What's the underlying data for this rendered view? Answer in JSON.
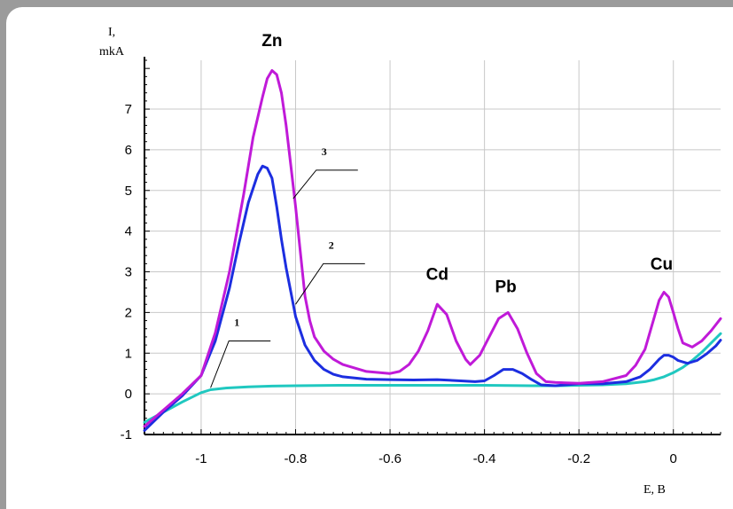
{
  "chart_data": {
    "type": "line",
    "title": "",
    "ylabel_line1": "I,",
    "ylabel_line2": "mkA",
    "xlabel": "E, B",
    "xlim": [
      -1.12,
      0.1
    ],
    "ylim": [
      -1,
      8.2
    ],
    "xticks": [
      -1,
      -0.8,
      -0.6,
      -0.4,
      -0.2,
      0
    ],
    "xtick_labels": [
      "-1",
      "-0.8",
      "-0.6",
      "-0.4",
      "-0.2",
      "0"
    ],
    "yticks": [
      -1,
      0,
      1,
      2,
      3,
      4,
      5,
      6,
      7
    ],
    "ytick_labels": [
      "-1",
      "0",
      "1",
      "2",
      "3",
      "4",
      "5",
      "6",
      "7"
    ],
    "grid": true,
    "peak_labels": [
      {
        "text": "Zn",
        "x": -0.85,
        "y": 8.55
      },
      {
        "text": "Cd",
        "x": -0.5,
        "y": 2.8
      },
      {
        "text": "Pb",
        "x": -0.355,
        "y": 2.5
      },
      {
        "text": "Cu",
        "x": -0.025,
        "y": 3.05
      }
    ],
    "curve_labels": [
      {
        "text": "1",
        "series": 0,
        "anchor": [
          -0.98,
          0.15
        ],
        "leader_end": [
          -0.9,
          1.3
        ]
      },
      {
        "text": "2",
        "series": 1,
        "anchor": [
          -0.8,
          2.2
        ],
        "leader_end": [
          -0.7,
          3.2
        ]
      },
      {
        "text": "3",
        "series": 2,
        "anchor": [
          -0.805,
          4.8
        ],
        "leader_end": [
          -0.715,
          5.5
        ]
      }
    ],
    "series": [
      {
        "color": "#20c8c0",
        "x": [
          -1.12,
          -1.08,
          -1.04,
          -1.0,
          -0.98,
          -0.95,
          -0.9,
          -0.85,
          -0.8,
          -0.7,
          -0.6,
          -0.5,
          -0.4,
          -0.3,
          -0.25,
          -0.2,
          -0.15,
          -0.1,
          -0.06,
          -0.04,
          -0.02,
          0.0,
          0.02,
          0.04,
          0.06,
          0.08,
          0.1
        ],
        "y": [
          -0.7,
          -0.45,
          -0.2,
          0.03,
          0.1,
          0.14,
          0.17,
          0.19,
          0.2,
          0.21,
          0.21,
          0.21,
          0.21,
          0.2,
          0.2,
          0.21,
          0.22,
          0.25,
          0.3,
          0.35,
          0.42,
          0.52,
          0.65,
          0.82,
          1.02,
          1.25,
          1.48
        ]
      },
      {
        "color": "#1c2ee0",
        "x": [
          -1.12,
          -1.08,
          -1.04,
          -1.0,
          -0.97,
          -0.94,
          -0.92,
          -0.9,
          -0.88,
          -0.87,
          -0.86,
          -0.85,
          -0.84,
          -0.83,
          -0.82,
          -0.81,
          -0.8,
          -0.78,
          -0.76,
          -0.74,
          -0.72,
          -0.7,
          -0.65,
          -0.6,
          -0.55,
          -0.5,
          -0.45,
          -0.42,
          -0.4,
          -0.38,
          -0.36,
          -0.34,
          -0.32,
          -0.3,
          -0.28,
          -0.25,
          -0.2,
          -0.15,
          -0.1,
          -0.07,
          -0.05,
          -0.03,
          -0.02,
          -0.01,
          0.0,
          0.01,
          0.03,
          0.05,
          0.07,
          0.09,
          0.1
        ],
        "y": [
          -0.9,
          -0.45,
          -0.05,
          0.45,
          1.3,
          2.6,
          3.7,
          4.7,
          5.4,
          5.6,
          5.55,
          5.3,
          4.6,
          3.8,
          3.1,
          2.5,
          1.9,
          1.2,
          0.82,
          0.6,
          0.48,
          0.42,
          0.36,
          0.35,
          0.34,
          0.35,
          0.32,
          0.3,
          0.32,
          0.45,
          0.6,
          0.6,
          0.5,
          0.35,
          0.22,
          0.2,
          0.25,
          0.25,
          0.3,
          0.42,
          0.6,
          0.85,
          0.95,
          0.95,
          0.9,
          0.82,
          0.75,
          0.82,
          0.98,
          1.18,
          1.32
        ]
      },
      {
        "color": "#c01ad8",
        "x": [
          -1.12,
          -1.08,
          -1.04,
          -1.0,
          -0.97,
          -0.94,
          -0.91,
          -0.89,
          -0.87,
          -0.86,
          -0.85,
          -0.84,
          -0.83,
          -0.82,
          -0.81,
          -0.8,
          -0.79,
          -0.78,
          -0.77,
          -0.76,
          -0.74,
          -0.72,
          -0.7,
          -0.65,
          -0.6,
          -0.58,
          -0.56,
          -0.54,
          -0.52,
          -0.5,
          -0.48,
          -0.46,
          -0.44,
          -0.43,
          -0.41,
          -0.39,
          -0.37,
          -0.35,
          -0.33,
          -0.31,
          -0.29,
          -0.27,
          -0.25,
          -0.2,
          -0.15,
          -0.1,
          -0.08,
          -0.06,
          -0.05,
          -0.04,
          -0.03,
          -0.02,
          -0.01,
          0.0,
          0.01,
          0.02,
          0.04,
          0.06,
          0.08,
          0.1
        ],
        "y": [
          -0.8,
          -0.4,
          0.0,
          0.45,
          1.5,
          3.0,
          4.9,
          6.3,
          7.3,
          7.75,
          7.95,
          7.85,
          7.4,
          6.6,
          5.6,
          4.6,
          3.5,
          2.4,
          1.8,
          1.4,
          1.05,
          0.85,
          0.72,
          0.55,
          0.5,
          0.55,
          0.72,
          1.05,
          1.55,
          2.2,
          1.95,
          1.3,
          0.85,
          0.72,
          0.95,
          1.4,
          1.85,
          2.0,
          1.6,
          1.0,
          0.5,
          0.3,
          0.28,
          0.26,
          0.3,
          0.45,
          0.7,
          1.1,
          1.5,
          1.9,
          2.3,
          2.5,
          2.38,
          2.0,
          1.6,
          1.25,
          1.15,
          1.3,
          1.55,
          1.85
        ]
      }
    ]
  }
}
